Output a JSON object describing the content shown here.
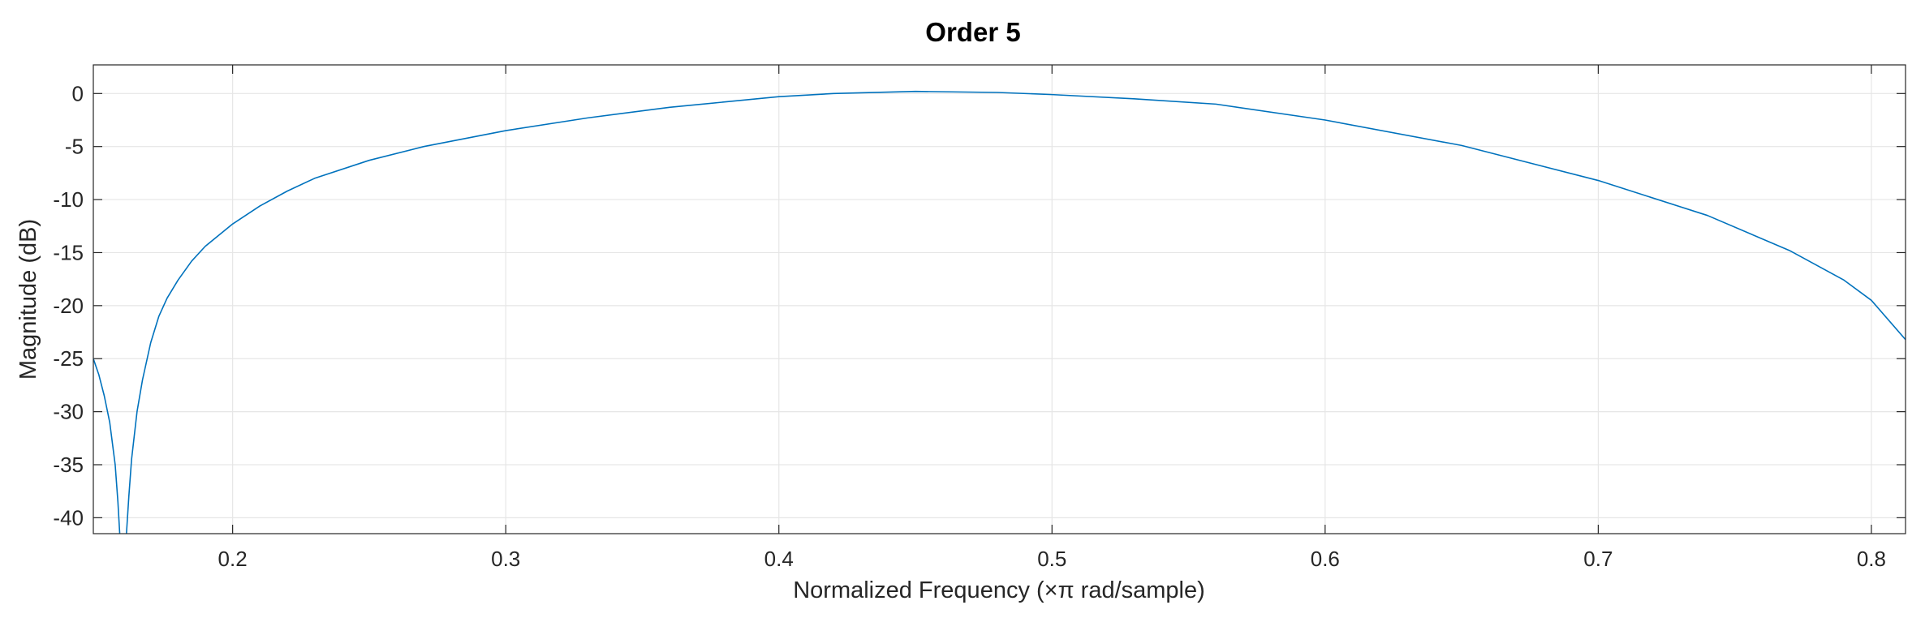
{
  "chart_data": {
    "type": "line",
    "title": "Order 5",
    "xlabel": "Normalized Frequency  (×π rad/sample)",
    "ylabel": "Magnitude (dB)",
    "xlim": [
      0.149,
      0.8125
    ],
    "ylim": [
      -41.5,
      2.7
    ],
    "xticks": [
      0.2,
      0.3,
      0.4,
      0.5,
      0.6,
      0.7,
      0.8
    ],
    "xtick_labels": [
      "0.2",
      "0.3",
      "0.4",
      "0.5",
      "0.6",
      "0.7",
      "0.8"
    ],
    "yticks": [
      0,
      -5,
      -10,
      -15,
      -20,
      -25,
      -30,
      -35,
      -40
    ],
    "ytick_labels": [
      "0",
      "-5",
      "-10",
      "-15",
      "-20",
      "-25",
      "-30",
      "-35",
      "-40"
    ],
    "grid": true,
    "line_color": "#0072BD",
    "series": [
      {
        "x": [
          0.149,
          0.151,
          0.153,
          0.155,
          0.157,
          0.158,
          0.159,
          0.1595,
          0.1605,
          0.161,
          0.162,
          0.163,
          0.165,
          0.167,
          0.17,
          0.173,
          0.176,
          0.18,
          0.185,
          0.19,
          0.2,
          0.21,
          0.22,
          0.23,
          0.25,
          0.27,
          0.3,
          0.33,
          0.36,
          0.4,
          0.42,
          0.45,
          0.48,
          0.5,
          0.53,
          0.56,
          0.6,
          0.65,
          0.7,
          0.74,
          0.77,
          0.79,
          0.8,
          0.8125
        ],
        "y": [
          -25.0,
          -26.5,
          -28.5,
          -31.0,
          -35.0,
          -38.5,
          -43.0,
          -48.0,
          -48.0,
          -42.0,
          -38.0,
          -34.5,
          -30.0,
          -27.0,
          -23.5,
          -21.0,
          -19.3,
          -17.6,
          -15.8,
          -14.4,
          -12.3,
          -10.6,
          -9.2,
          -8.0,
          -6.3,
          -5.0,
          -3.5,
          -2.3,
          -1.3,
          -0.3,
          0.0,
          0.2,
          0.1,
          -0.1,
          -0.5,
          -1.0,
          -2.5,
          -4.9,
          -8.2,
          -11.5,
          -14.8,
          -17.6,
          -19.5,
          -23.2
        ]
      }
    ]
  }
}
